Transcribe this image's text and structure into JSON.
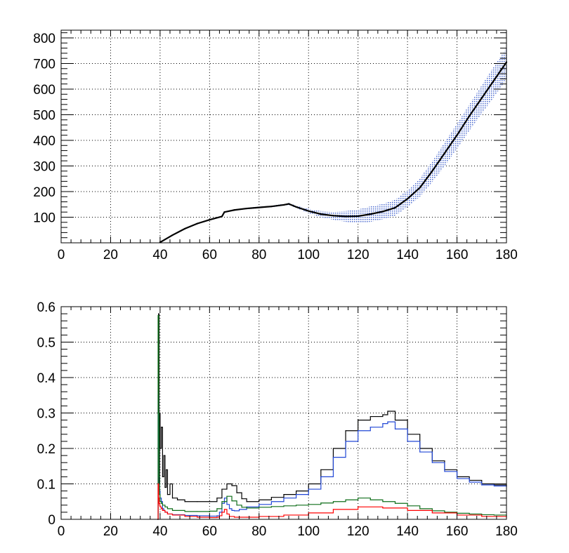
{
  "chart_data": [
    {
      "type": "line",
      "title": "",
      "xlabel": "",
      "ylabel": "",
      "xlim": [
        0,
        180
      ],
      "ylim": [
        0,
        830
      ],
      "grid": true,
      "x_ticks": [
        "0",
        "20",
        "40",
        "60",
        "80",
        "100",
        "120",
        "140",
        "160",
        "180"
      ],
      "y_ticks": [
        "100",
        "200",
        "300",
        "400",
        "500",
        "600",
        "700",
        "800"
      ],
      "colors": {
        "line": "#000000",
        "band": "#2f52c8"
      },
      "series": [
        {
          "role": "central",
          "x": [
            40,
            45,
            50,
            55,
            60,
            65,
            66,
            70,
            75,
            80,
            85,
            90,
            92,
            95,
            100,
            105,
            110,
            115,
            120,
            125,
            130,
            135,
            140,
            145,
            150,
            155,
            160,
            165,
            170,
            175,
            180
          ],
          "y": [
            2,
            30,
            55,
            75,
            90,
            103,
            120,
            128,
            134,
            138,
            142,
            148,
            152,
            140,
            124,
            112,
            106,
            103,
            104,
            112,
            122,
            137,
            172,
            215,
            280,
            350,
            420,
            495,
            565,
            635,
            705
          ]
        },
        {
          "role": "band",
          "x": [
            66,
            70,
            75,
            80,
            85,
            90,
            92,
            95,
            100,
            105,
            110,
            115,
            120,
            125,
            130,
            135,
            140,
            145,
            150,
            155,
            160,
            165,
            170,
            175,
            180
          ],
          "low": [
            118,
            126,
            131,
            135,
            139,
            145,
            148,
            136,
            116,
            100,
            90,
            82,
            78,
            82,
            92,
            106,
            140,
            180,
            238,
            300,
            368,
            438,
            505,
            570,
            640
          ],
          "high": [
            122,
            130,
            137,
            141,
            145,
            152,
            156,
            145,
            133,
            124,
            122,
            124,
            130,
            142,
            152,
            168,
            205,
            252,
            318,
            392,
            465,
            540,
            615,
            690,
            760
          ]
        }
      ]
    },
    {
      "type": "line",
      "title": "",
      "xlabel": "",
      "ylabel": "",
      "xlim": [
        0,
        180
      ],
      "ylim": [
        0,
        0.6
      ],
      "grid": true,
      "x_ticks": [
        "0",
        "20",
        "40",
        "60",
        "80",
        "100",
        "120",
        "140",
        "160",
        "180"
      ],
      "y_ticks": [
        "0",
        "0.1",
        "0.2",
        "0.3",
        "0.4",
        "0.5",
        "0.6"
      ],
      "series": [
        {
          "color": "#000000",
          "x": [
            39,
            39.2,
            39.4,
            39.6,
            39.8,
            40,
            40.5,
            41,
            41.5,
            42,
            42.5,
            43,
            44,
            45,
            47,
            50,
            55,
            60,
            63,
            65,
            67,
            69,
            71,
            73,
            75,
            80,
            85,
            90,
            95,
            100,
            105,
            110,
            115,
            120,
            125,
            130,
            132,
            135,
            140,
            145,
            150,
            155,
            160,
            165,
            170,
            175,
            180
          ],
          "y": [
            0,
            0.57,
            0.58,
            0.1,
            0.3,
            0.2,
            0.26,
            0.12,
            0.18,
            0.09,
            0.14,
            0.07,
            0.1,
            0.06,
            0.055,
            0.05,
            0.05,
            0.05,
            0.06,
            0.085,
            0.1,
            0.095,
            0.075,
            0.058,
            0.05,
            0.055,
            0.062,
            0.07,
            0.08,
            0.1,
            0.14,
            0.2,
            0.25,
            0.28,
            0.29,
            0.295,
            0.305,
            0.28,
            0.24,
            0.2,
            0.165,
            0.14,
            0.12,
            0.11,
            0.1,
            0.097,
            0.095
          ]
        },
        {
          "color": "#2147d6",
          "x": [
            39,
            39.2,
            39.4,
            39.6,
            39.8,
            40,
            40.5,
            41,
            41.5,
            42,
            43,
            45,
            50,
            55,
            60,
            63,
            64,
            65,
            66,
            67,
            68,
            69,
            70,
            72,
            75,
            80,
            85,
            90,
            95,
            100,
            105,
            110,
            115,
            120,
            125,
            130,
            132,
            135,
            140,
            145,
            150,
            155,
            160,
            165,
            170,
            175,
            180
          ],
          "y": [
            0,
            0.35,
            0.2,
            0.12,
            0.08,
            0.06,
            0.05,
            0.03,
            0.025,
            0.02,
            0.015,
            0.013,
            0.011,
            0.01,
            0.009,
            0.01,
            0.02,
            0.045,
            0.06,
            0.042,
            0.03,
            0.025,
            0.024,
            0.028,
            0.035,
            0.042,
            0.05,
            0.06,
            0.07,
            0.085,
            0.12,
            0.175,
            0.22,
            0.25,
            0.26,
            0.27,
            0.275,
            0.255,
            0.22,
            0.19,
            0.16,
            0.135,
            0.115,
            0.105,
            0.097,
            0.094,
            0.092
          ]
        },
        {
          "color": "#0f6e1a",
          "x": [
            39,
            39.2,
            39.4,
            39.6,
            39.8,
            40,
            40.5,
            41,
            42,
            43,
            45,
            50,
            55,
            60,
            63,
            65,
            67,
            69,
            71,
            73,
            75,
            80,
            85,
            90,
            95,
            100,
            105,
            110,
            115,
            120,
            125,
            130,
            135,
            140,
            145,
            150,
            155,
            160,
            165,
            170,
            175,
            180
          ],
          "y": [
            0,
            0.575,
            0.3,
            0.12,
            0.07,
            0.05,
            0.045,
            0.04,
            0.035,
            0.03,
            0.025,
            0.022,
            0.022,
            0.023,
            0.03,
            0.05,
            0.065,
            0.052,
            0.04,
            0.034,
            0.032,
            0.034,
            0.036,
            0.038,
            0.04,
            0.042,
            0.046,
            0.05,
            0.055,
            0.06,
            0.055,
            0.05,
            0.045,
            0.038,
            0.03,
            0.024,
            0.02,
            0.017,
            0.015,
            0.013,
            0.012,
            0.01
          ]
        },
        {
          "color": "#ff0000",
          "x": [
            39,
            39.2,
            39.4,
            39.6,
            39.8,
            40,
            40.5,
            41,
            42,
            43,
            45,
            50,
            55,
            60,
            63,
            64,
            65,
            66,
            67,
            68,
            70,
            75,
            80,
            90,
            100,
            110,
            120,
            130,
            140,
            150,
            160,
            170,
            180
          ],
          "y": [
            0,
            0.1,
            0.06,
            0.045,
            0.04,
            0.035,
            0.03,
            0.025,
            0.02,
            0.015,
            0.012,
            0.008,
            0.006,
            0.005,
            0.006,
            0.01,
            0.02,
            0.028,
            0.015,
            0.008,
            0.006,
            0.006,
            0.008,
            0.012,
            0.018,
            0.028,
            0.035,
            0.032,
            0.025,
            0.018,
            0.012,
            0.008,
            0.005
          ]
        }
      ]
    }
  ]
}
